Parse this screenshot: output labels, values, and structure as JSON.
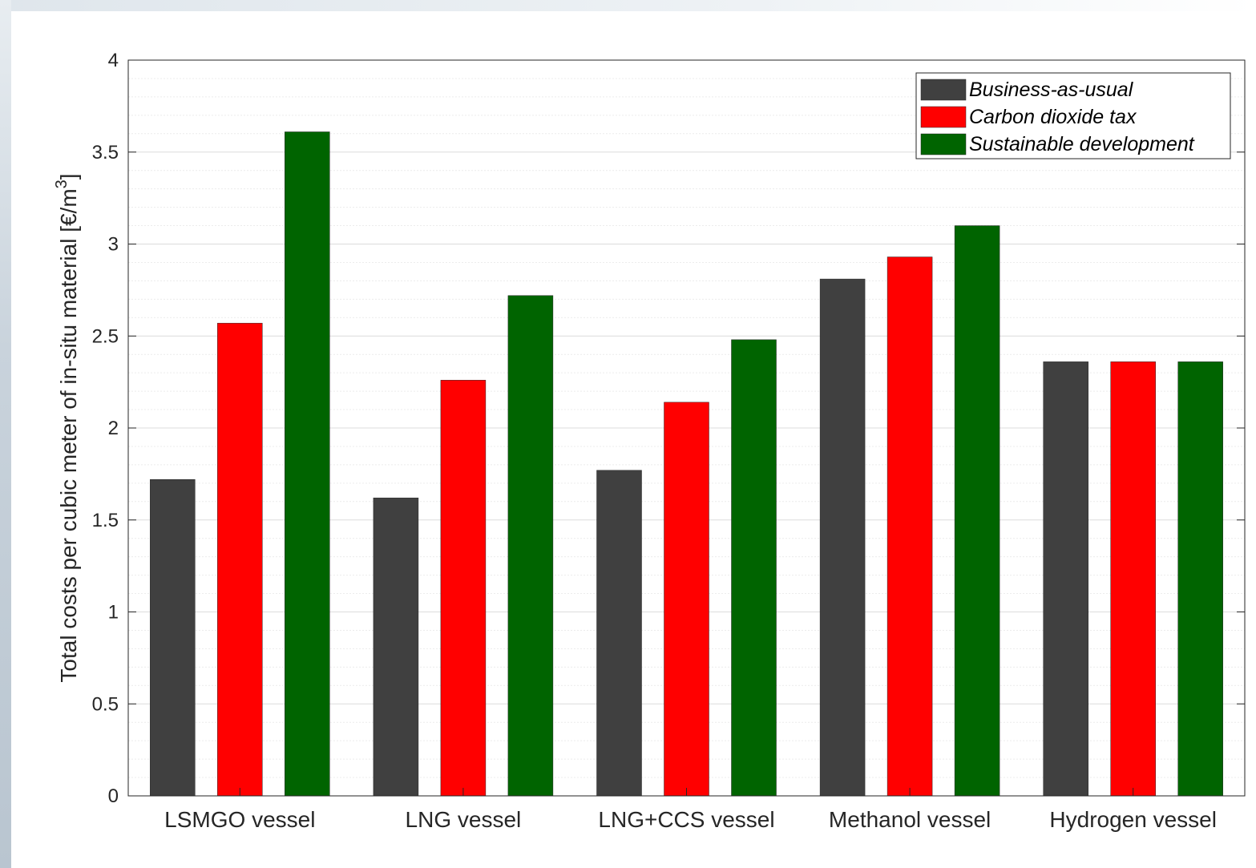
{
  "chart_data": {
    "type": "bar",
    "title": "",
    "xlabel": "",
    "ylabel": "Total costs per cubic meter of in-situ material [€/m",
    "ylabel_superscript": "3",
    "ylabel_close": "]",
    "ylim": [
      0,
      4
    ],
    "yticks": [
      "0",
      "0.5",
      "1",
      "1.5",
      "2",
      "2.5",
      "3",
      "3.5",
      "4"
    ],
    "grid": true,
    "minor_grid": true,
    "legend_position": "top-right",
    "categories": [
      "LSMGO vessel",
      "LNG vessel",
      "LNG+CCS vessel",
      "Methanol vessel",
      "Hydrogen vessel"
    ],
    "series": [
      {
        "name": "Business-as-usual",
        "color": "#404040",
        "values": [
          1.72,
          1.62,
          1.77,
          2.81,
          2.36
        ]
      },
      {
        "name": "Carbon dioxide tax",
        "color": "#ff0000",
        "values": [
          2.57,
          2.26,
          2.14,
          2.93,
          2.36
        ]
      },
      {
        "name": "Sustainable development",
        "color": "#006400",
        "values": [
          3.61,
          2.72,
          2.48,
          3.1,
          2.36
        ]
      }
    ]
  }
}
